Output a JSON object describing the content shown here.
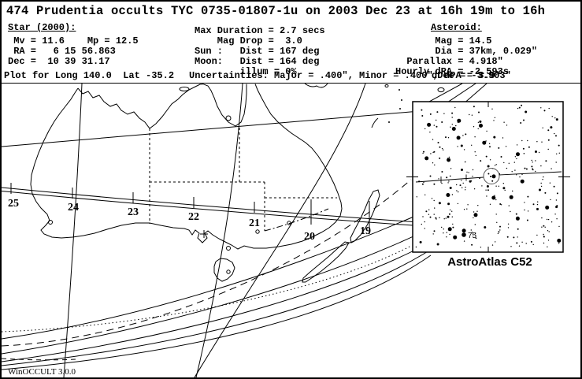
{
  "title": "474 Prudentia occults TYC 0735-01807-1u on 2003 Dec 23 at 16h 19m to 16h",
  "star": {
    "heading": "Star (2000):",
    "mv_mp_line": " Mv = 11.6    Mp = 12.5",
    "ra_line": " RA =   6 15 56.863",
    "dec_line": "Dec =  10 39 31.17"
  },
  "plot_line": "Plot for Long 140.0  Lat -35.2",
  "event": {
    "lines": [
      "Max Duration = 2.7 secs",
      "    Mag Drop =  3.0",
      "Sun :   Dist = 167 deg",
      "Moon:   Dist = 164 deg",
      "        illum = 0%"
    ],
    "uncertainties_line": "Uncertainties: Major = .400\", Minor = .400\", dPA = 3.9\""
  },
  "asteroid": {
    "heading": "Asteroid:",
    "lines": [
      "       Mag = 14.5",
      "       Dia = 37km, 0.029\"",
      "  Parallax = 4.918\"",
      "Hourly dRA = -2.593s"
    ],
    "ddec_line": "dDec = -3.903\""
  },
  "map": {
    "time_labels": [
      "25",
      "24",
      "23",
      "22",
      "21",
      "20",
      "19"
    ],
    "site_marker": "+",
    "watermark": "WinOCCULT 3.0.0"
  },
  "inset": {
    "caption": "AstroAtlas C52",
    "star_label": "75",
    "accent_color": "#000000"
  }
}
